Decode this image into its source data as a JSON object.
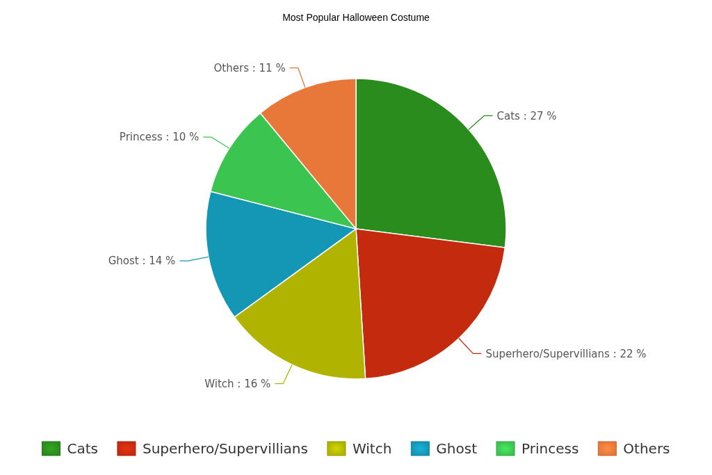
{
  "chart_data": {
    "type": "pie",
    "title": "Most Popular Halloween Costume",
    "categories": [
      "Cats",
      "Superhero/Supervillians",
      "Witch",
      "Ghost",
      "Princess",
      "Others"
    ],
    "values": [
      27,
      22,
      16,
      14,
      10,
      11
    ],
    "value_labels": [
      "Cats : 27 %",
      "Superhero/Supervillians : 22 %",
      "Witch : 16 %",
      "Ghost : 14 %",
      "Princess : 10 %",
      "Others : 11 %"
    ],
    "colors": [
      "#2a8c1c",
      "#c42a0e",
      "#b0b300",
      "#1496b5",
      "#3cc450",
      "#e8773a"
    ],
    "legend": "bottom"
  }
}
